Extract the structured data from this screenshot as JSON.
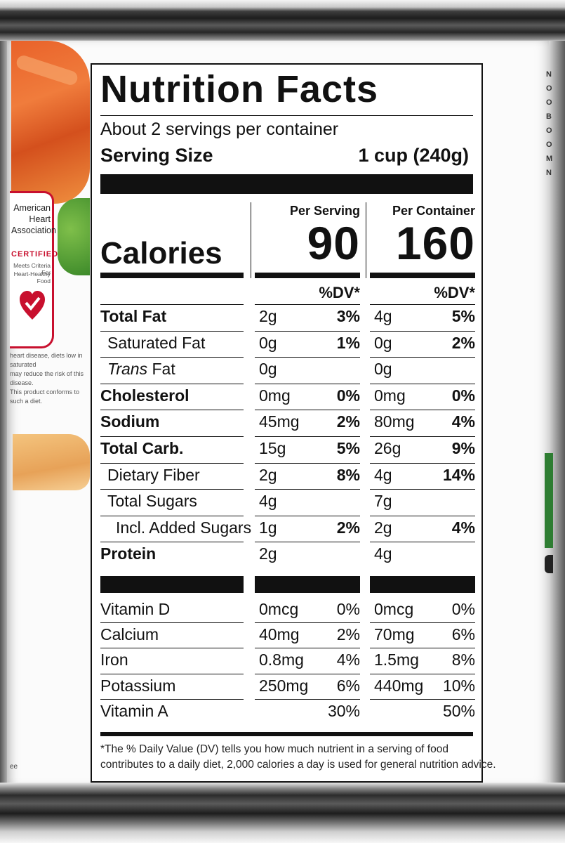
{
  "panel": {
    "title": "Nutrition Facts",
    "servings_per_container": "About 2 servings per container",
    "serving_size_label": "Serving Size",
    "serving_size_value": "1 cup (240g)",
    "calories_label": "Calories",
    "columns": [
      {
        "header": "Per Serving",
        "calories": "90",
        "dv_header": "%DV*"
      },
      {
        "header": "Per Container",
        "calories": "160",
        "dv_header": "%DV*"
      }
    ],
    "nutrients": [
      {
        "name": "Total Fat",
        "style": "bold",
        "serving_amount": "2g",
        "serving_dv": "3%",
        "container_amount": "4g",
        "container_dv": "5%"
      },
      {
        "name": "Saturated Fat",
        "style": "indent",
        "serving_amount": "0g",
        "serving_dv": "1%",
        "container_amount": "0g",
        "container_dv": "2%"
      },
      {
        "name_italic": "Trans",
        "name_rest": " Fat",
        "style": "indent",
        "serving_amount": "0g",
        "serving_dv": "",
        "container_amount": "0g",
        "container_dv": ""
      },
      {
        "name": "Cholesterol",
        "style": "bold",
        "serving_amount": "0mg",
        "serving_dv": "0%",
        "container_amount": "0mg",
        "container_dv": "0%"
      },
      {
        "name": "Sodium",
        "style": "bold",
        "serving_amount": "45mg",
        "serving_dv": "2%",
        "container_amount": "80mg",
        "container_dv": "4%"
      },
      {
        "name": "Total Carb.",
        "style": "bold",
        "serving_amount": "15g",
        "serving_dv": "5%",
        "container_amount": "26g",
        "container_dv": "9%"
      },
      {
        "name": "Dietary Fiber",
        "style": "indent",
        "serving_amount": "2g",
        "serving_dv": "8%",
        "container_amount": "4g",
        "container_dv": "14%"
      },
      {
        "name": "Total Sugars",
        "style": "indent",
        "serving_amount": "4g",
        "serving_dv": "",
        "container_amount": "7g",
        "container_dv": ""
      },
      {
        "name": "Incl. Added Sugars",
        "style": "indent2",
        "serving_amount": "1g",
        "serving_dv": "2%",
        "container_amount": "2g",
        "container_dv": "4%"
      },
      {
        "name": "Protein",
        "style": "bold",
        "serving_amount": "2g",
        "serving_dv": "",
        "container_amount": "4g",
        "container_dv": ""
      }
    ],
    "vitamins": [
      {
        "name": "Vitamin D",
        "serving_amount": "0mcg",
        "serving_dv": "0%",
        "container_amount": "0mcg",
        "container_dv": "0%"
      },
      {
        "name": "Calcium",
        "serving_amount": "40mg",
        "serving_dv": "2%",
        "container_amount": "70mg",
        "container_dv": "6%"
      },
      {
        "name": "Iron",
        "serving_amount": "0.8mg",
        "serving_dv": "4%",
        "container_amount": "1.5mg",
        "container_dv": "8%"
      },
      {
        "name": "Potassium",
        "serving_amount": "250mg",
        "serving_dv": "6%",
        "container_amount": "440mg",
        "container_dv": "10%"
      },
      {
        "name": "Vitamin A",
        "serving_amount": "",
        "serving_dv": "30%",
        "container_amount": "",
        "container_dv": "50%"
      }
    ],
    "footnote_line1": "*The % Daily Value (DV) tells you how much nutrient in a serving of food",
    "footnote_line2": "contributes to a daily diet, 2,000 calories a day is used for general nutrition advice."
  },
  "badge": {
    "line1": "American",
    "line2": "Heart",
    "line3": "Association",
    "certified": "CERTIFIED",
    "small1": "Meets Criteria For",
    "small2": "Heart-Healthy Food",
    "brand_color": "#c8102e",
    "icon": "heart-check-icon"
  },
  "disclaimer": {
    "line1": "heart disease, diets low in saturated",
    "line2": "may reduce the risk of this disease.",
    "line3": "This product conforms to such a diet."
  },
  "right_edge_letters": [
    "N",
    "O",
    "O",
    "B",
    "O",
    "O",
    "M",
    "N"
  ],
  "left_edge_fragment": "ee"
}
